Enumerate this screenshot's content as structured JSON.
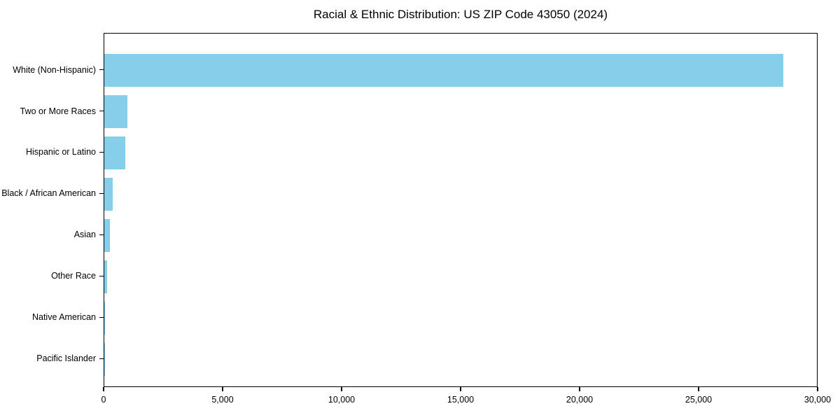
{
  "chart_data": {
    "type": "bar",
    "orientation": "horizontal",
    "title": "Racial & Ethnic Distribution: US ZIP Code 43050 (2024)",
    "categories": [
      "White (Non-Hispanic)",
      "Two or More Races",
      "Hispanic or Latino",
      "Black / African American",
      "Asian",
      "Other Race",
      "Native American",
      "Pacific Islander"
    ],
    "values": [
      28540,
      980,
      890,
      350,
      240,
      130,
      20,
      5
    ],
    "xlabel": "",
    "ylabel": "",
    "xlim": [
      0,
      30000
    ],
    "x_ticks": [
      0,
      5000,
      10000,
      15000,
      20000,
      25000,
      30000
    ],
    "x_tick_labels": [
      "0",
      "5,000",
      "10,000",
      "15,000",
      "20,000",
      "25,000",
      "30,000"
    ],
    "bar_color": "#87CEEB",
    "frame_color": "#000000",
    "text_color": "#000000",
    "background_color": "#ffffff",
    "grid": false,
    "legend": null
  }
}
